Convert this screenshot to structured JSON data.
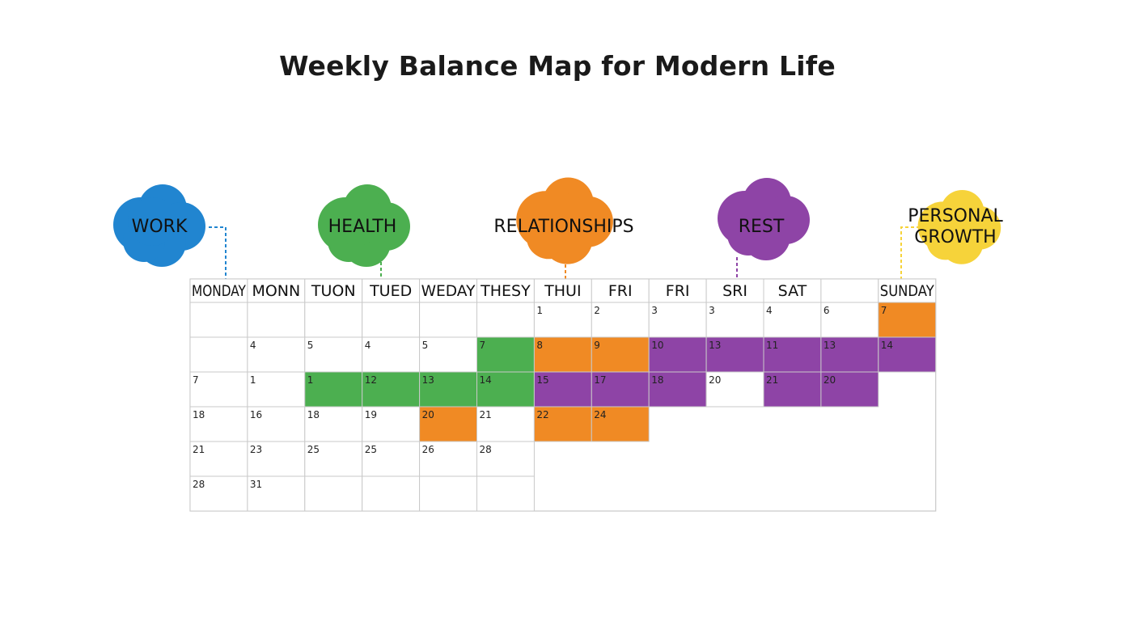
{
  "title": "Weekly Balance Map for Modern Life",
  "colors": {
    "work": "#2185d0",
    "health": "#4caf50",
    "relationships": "#f08a24",
    "rest": "#8e44a6",
    "growth": "#f6d33a",
    "grid": "#c9c9c9"
  },
  "categories": [
    {
      "key": "work",
      "lines": [
        "WORK"
      ],
      "icon": "cloud-icon"
    },
    {
      "key": "health",
      "lines": [
        "HEALTH"
      ],
      "icon": "cloud-icon"
    },
    {
      "key": "relationships",
      "lines": [
        "RELATIONSHIPS"
      ],
      "icon": "cloud-icon"
    },
    {
      "key": "rest",
      "lines": [
        "REST"
      ],
      "icon": "cloud-icon"
    },
    {
      "key": "growth",
      "lines": [
        "PERSONAL",
        "GROWTH"
      ],
      "icon": "cloud-icon"
    }
  ],
  "headers": [
    "MONDAY",
    "MONN",
    "TUON",
    "TUED",
    "WEDAY",
    "THESY",
    "THUI",
    "FRI",
    "FRI",
    "SRI",
    "SAT",
    "",
    "SUNDAY"
  ],
  "rows": [
    [
      {
        "n": ""
      },
      {
        "n": ""
      },
      {
        "n": ""
      },
      {
        "n": ""
      },
      {
        "n": ""
      },
      {
        "n": ""
      },
      {
        "n": "1"
      },
      {
        "n": "2"
      },
      {
        "n": "3"
      },
      {
        "n": "3"
      },
      {
        "n": "4"
      },
      {
        "n": "6"
      },
      {
        "n": "7",
        "c": "relationships"
      }
    ],
    [
      {
        "n": ""
      },
      {
        "n": "4"
      },
      {
        "n": "5"
      },
      {
        "n": "4"
      },
      {
        "n": "5"
      },
      {
        "n": "7",
        "c": "health"
      },
      {
        "n": "8",
        "c": "relationships"
      },
      {
        "n": "9",
        "c": "relationships"
      },
      {
        "n": "10",
        "c": "rest"
      },
      {
        "n": "13",
        "c": "rest"
      },
      {
        "n": "11",
        "c": "rest"
      },
      {
        "n": "13",
        "c": "rest"
      },
      {
        "n": "14",
        "c": "rest"
      }
    ],
    [
      {
        "n": "7"
      },
      {
        "n": "1"
      },
      {
        "n": "1",
        "c": "health"
      },
      {
        "n": "12",
        "c": "health"
      },
      {
        "n": "13",
        "c": "health"
      },
      {
        "n": "14",
        "c": "health"
      },
      {
        "n": "15",
        "c": "rest"
      },
      {
        "n": "17",
        "c": "rest"
      },
      {
        "n": "18",
        "c": "rest"
      },
      {
        "n": "20"
      },
      {
        "n": "21",
        "c": "rest"
      },
      {
        "n": "20",
        "c": "rest"
      },
      null
    ],
    [
      {
        "n": "18"
      },
      {
        "n": "16"
      },
      {
        "n": "18"
      },
      {
        "n": "19"
      },
      {
        "n": "20",
        "c": "relationships"
      },
      {
        "n": "21"
      },
      {
        "n": "22",
        "c": "relationships"
      },
      {
        "n": "24",
        "c": "relationships"
      },
      null,
      null,
      null,
      null,
      null
    ],
    [
      {
        "n": "21"
      },
      {
        "n": "23"
      },
      {
        "n": "25"
      },
      {
        "n": "25"
      },
      {
        "n": "26"
      },
      {
        "n": "28"
      },
      null,
      null,
      null,
      null,
      null,
      null,
      null
    ],
    [
      {
        "n": "28"
      },
      {
        "n": "31"
      },
      {
        "n": ""
      },
      {
        "n": ""
      },
      {
        "n": ""
      },
      {
        "n": ""
      },
      null,
      null,
      null,
      null,
      null,
      null,
      null
    ]
  ]
}
